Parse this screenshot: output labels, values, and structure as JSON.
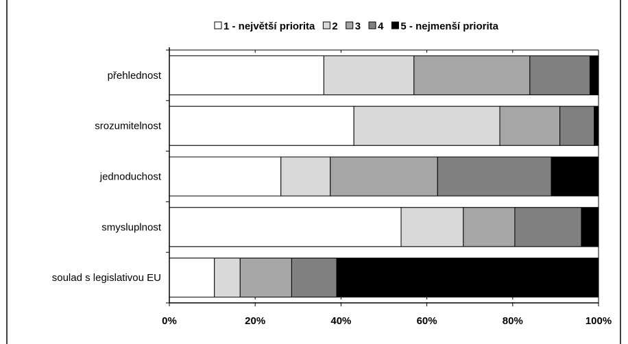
{
  "chart_data": {
    "type": "bar",
    "orientation": "horizontal",
    "stacked": "percent",
    "title": "",
    "xlabel": "",
    "ylabel": "",
    "xlim": [
      0,
      100
    ],
    "x_ticks": [
      "0%",
      "20%",
      "40%",
      "60%",
      "80%",
      "100%"
    ],
    "x_tick_values": [
      0,
      20,
      40,
      60,
      80,
      100
    ],
    "grid": "vertical-dashed",
    "legend_position": "top",
    "categories": [
      "přehlednost",
      "srozumitelnost",
      "jednoduchost",
      "smysluplnost",
      "soulad s legislativou EU"
    ],
    "series": [
      {
        "name": "1 - největší priorita",
        "color": "#ffffff",
        "values": [
          36,
          43,
          26,
          54,
          10.5
        ]
      },
      {
        "name": "2",
        "color": "#d9d9d9",
        "values": [
          21,
          34,
          11.5,
          14.5,
          6
        ]
      },
      {
        "name": "3",
        "color": "#a6a6a6",
        "values": [
          27,
          14,
          25,
          12,
          12
        ]
      },
      {
        "name": "4",
        "color": "#808080",
        "values": [
          14,
          8,
          26.5,
          15.5,
          10.5
        ]
      },
      {
        "name": "5 - nejmenší priorita",
        "color": "#000000",
        "values": [
          2,
          1,
          11,
          4,
          61
        ]
      }
    ]
  }
}
